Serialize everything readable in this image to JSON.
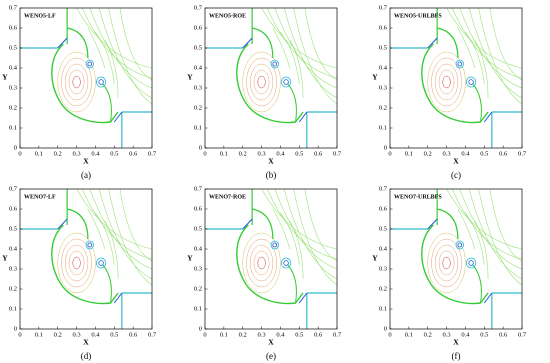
{
  "panels": [
    {
      "title": "WENO5-LF",
      "caption": "(a)"
    },
    {
      "title": "WENO5-ROE",
      "caption": "(b)"
    },
    {
      "title": "WENO5-URLBFS",
      "caption": "(c)"
    },
    {
      "title": "WENO7-LF",
      "caption": "(d)"
    },
    {
      "title": "WENO7-ROE",
      "caption": "(e)"
    },
    {
      "title": "WENO7-URLBFS",
      "caption": "(f)"
    }
  ],
  "axes": {
    "x_label": "X",
    "y_label": "Y",
    "xticks": [
      "0",
      "0.1",
      "0.2",
      "0.3",
      "0.4",
      "0.5",
      "0.6",
      "0.7"
    ],
    "yticks": [
      "0",
      "0.1",
      "0.2",
      "0.3",
      "0.4",
      "0.5",
      "0.6",
      "0.7"
    ]
  }
}
